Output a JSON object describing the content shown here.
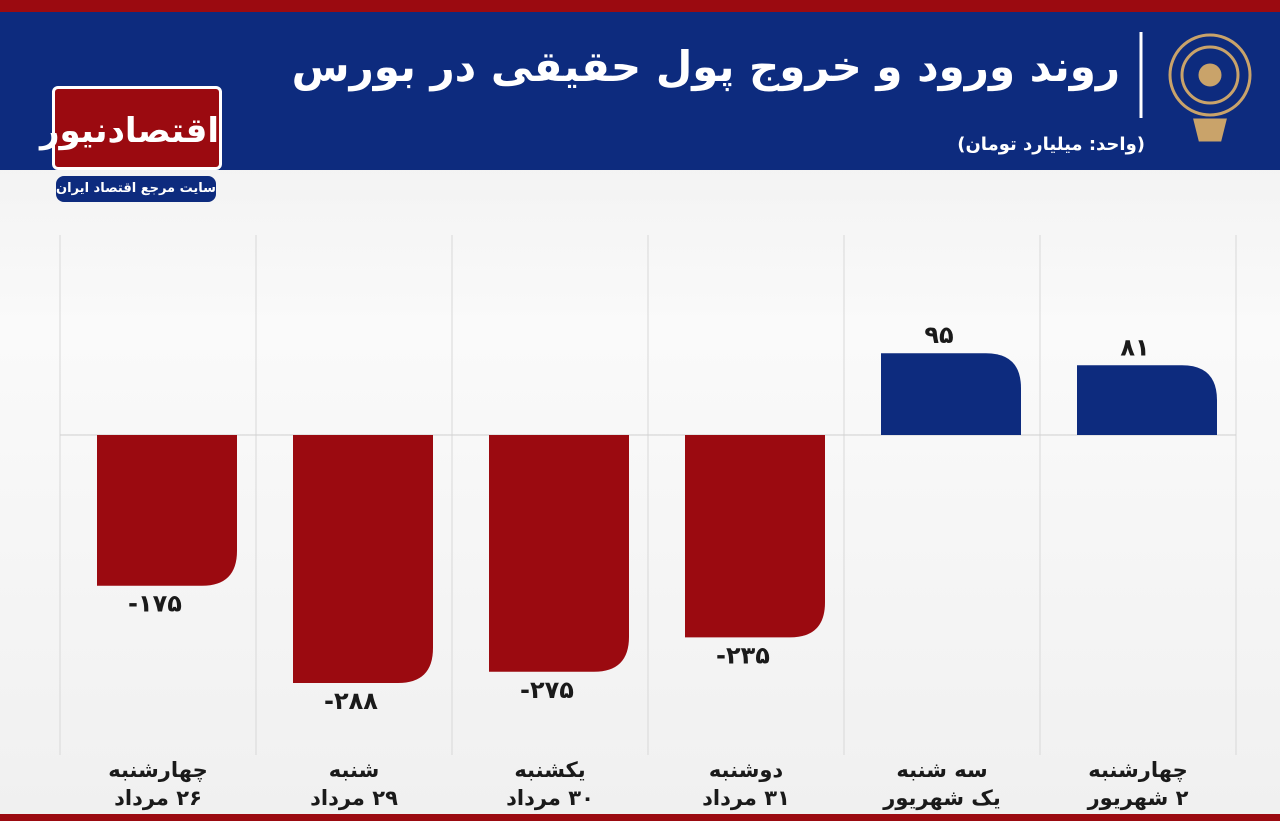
{
  "chart_data": {
    "type": "bar",
    "title": "روند ورود و خروج پول حقیقی در بورس",
    "subtitle": "(واحد: میلیارد تومان)",
    "categories": [
      "چهارشنبه\n۲۶ مرداد",
      "شنبه\n۲۹ مرداد",
      "یکشنبه\n۳۰ مرداد",
      "دوشنبه\n۳۱ مرداد",
      "سه شنبه\nیک شهریور",
      "چهارشنبه\n۲ شهریور"
    ],
    "values": [
      -175,
      -288,
      -275,
      -235,
      95,
      81
    ],
    "value_labels": [
      "-۱۷۵",
      "-۲۸۸",
      "-۲۷۵",
      "-۲۳۵",
      "۹۵",
      "۸۱"
    ],
    "positive_color": "#0d2b7e",
    "negative_color": "#9b0a10"
  },
  "brand": {
    "name": "اقتصادنیوز",
    "tagline": "سایت مرجع اقتصاد ایران"
  }
}
